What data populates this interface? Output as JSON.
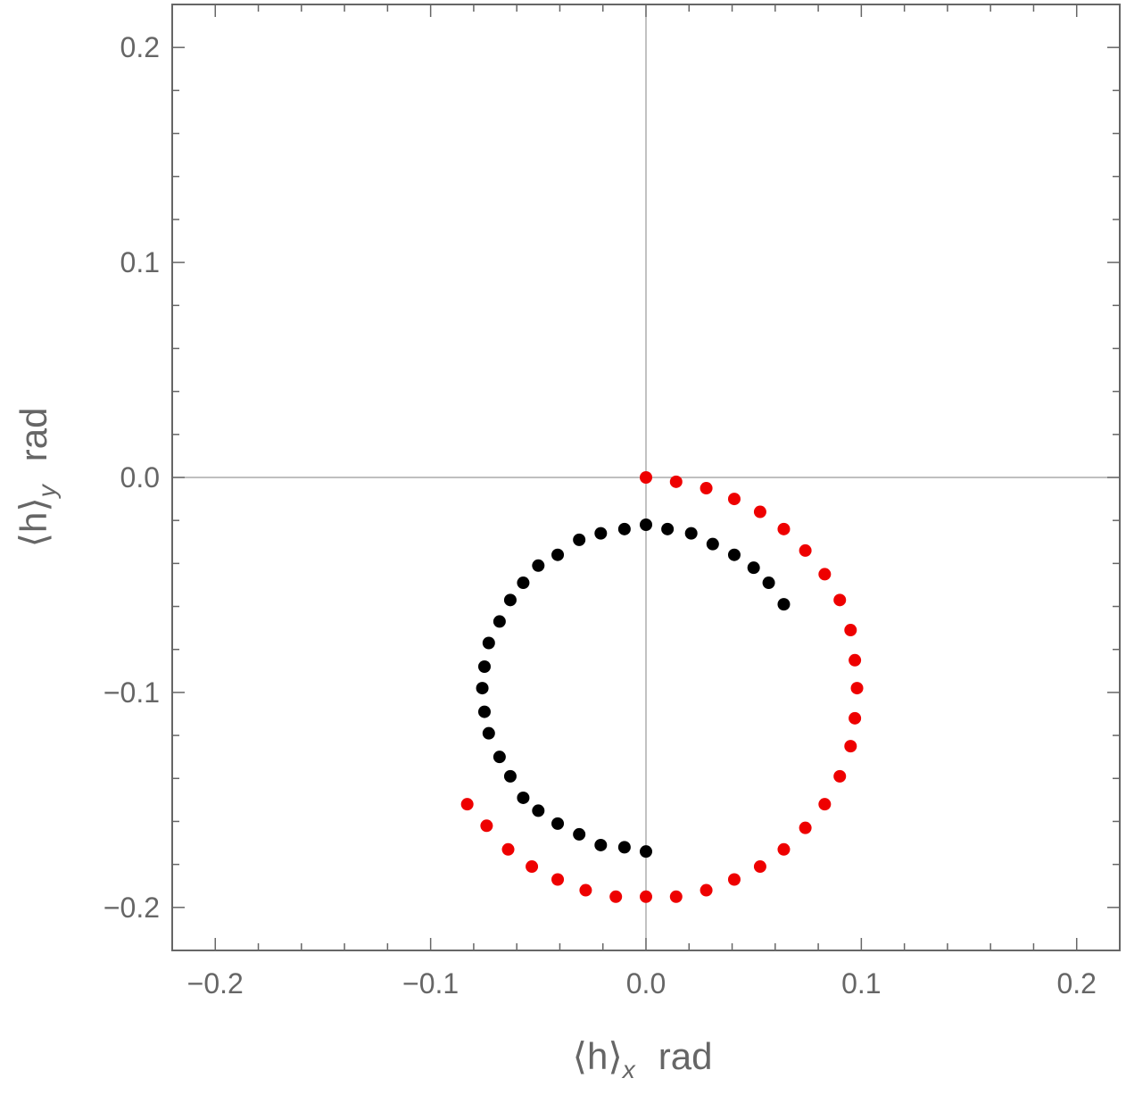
{
  "chart_data": {
    "type": "scatter",
    "title": "",
    "xlabel": {
      "main": "⟨h⟩",
      "sub": "x",
      "unit": "rad"
    },
    "ylabel": {
      "main": "⟨h⟩",
      "sub": "y",
      "unit": "rad"
    },
    "xlim": [
      -0.22,
      0.22
    ],
    "ylim": [
      -0.22,
      0.22
    ],
    "x_ticks": [
      -0.2,
      -0.1,
      0.0,
      0.1,
      0.2
    ],
    "x_tick_labels": [
      "−0.2",
      "−0.1",
      "0.0",
      "0.1",
      "0.2"
    ],
    "y_ticks": [
      0.2,
      0.1,
      0.0,
      -0.1,
      -0.2
    ],
    "y_tick_labels": [
      "0.2",
      "0.1",
      "0.0",
      "−0.1",
      "−0.2"
    ],
    "grid": false,
    "origin_axes": true,
    "colors": {
      "red": "#ee0000",
      "black": "#000000",
      "frame": "#666666",
      "origin_axes": "#999999"
    },
    "series": [
      {
        "color": "red",
        "points": [
          [
            0.0,
            0.0
          ],
          [
            0.014,
            -0.002
          ],
          [
            0.028,
            -0.005
          ],
          [
            0.041,
            -0.01
          ],
          [
            0.053,
            -0.016
          ],
          [
            0.064,
            -0.024
          ],
          [
            0.074,
            -0.034
          ],
          [
            0.083,
            -0.045
          ],
          [
            0.09,
            -0.057
          ],
          [
            0.095,
            -0.071
          ],
          [
            0.097,
            -0.085
          ],
          [
            0.098,
            -0.098
          ],
          [
            0.097,
            -0.112
          ],
          [
            0.095,
            -0.125
          ],
          [
            0.09,
            -0.139
          ],
          [
            0.083,
            -0.152
          ],
          [
            0.074,
            -0.163
          ],
          [
            0.064,
            -0.173
          ],
          [
            0.053,
            -0.181
          ],
          [
            0.041,
            -0.187
          ],
          [
            0.028,
            -0.192
          ],
          [
            0.014,
            -0.195
          ],
          [
            0.0,
            -0.195
          ],
          [
            -0.014,
            -0.195
          ],
          [
            -0.028,
            -0.192
          ],
          [
            -0.041,
            -0.187
          ],
          [
            -0.053,
            -0.181
          ],
          [
            -0.064,
            -0.173
          ],
          [
            -0.074,
            -0.162
          ],
          [
            -0.083,
            -0.152
          ]
        ]
      },
      {
        "color": "black",
        "points": [
          [
            0.0,
            -0.022
          ],
          [
            0.01,
            -0.024
          ],
          [
            0.021,
            -0.026
          ],
          [
            0.031,
            -0.031
          ],
          [
            0.041,
            -0.036
          ],
          [
            0.05,
            -0.042
          ],
          [
            0.057,
            -0.049
          ],
          [
            0.064,
            -0.059
          ],
          [
            -0.01,
            -0.024
          ],
          [
            -0.021,
            -0.026
          ],
          [
            -0.031,
            -0.029
          ],
          [
            -0.041,
            -0.036
          ],
          [
            -0.05,
            -0.041
          ],
          [
            -0.057,
            -0.049
          ],
          [
            -0.063,
            -0.057
          ],
          [
            -0.068,
            -0.067
          ],
          [
            -0.073,
            -0.077
          ],
          [
            -0.075,
            -0.088
          ],
          [
            -0.076,
            -0.098
          ],
          [
            -0.075,
            -0.109
          ],
          [
            -0.073,
            -0.119
          ],
          [
            -0.068,
            -0.13
          ],
          [
            -0.063,
            -0.139
          ],
          [
            -0.057,
            -0.149
          ],
          [
            -0.05,
            -0.155
          ],
          [
            -0.041,
            -0.161
          ],
          [
            -0.031,
            -0.166
          ],
          [
            -0.021,
            -0.171
          ],
          [
            -0.01,
            -0.172
          ],
          [
            0.0,
            -0.174
          ]
        ]
      }
    ]
  }
}
